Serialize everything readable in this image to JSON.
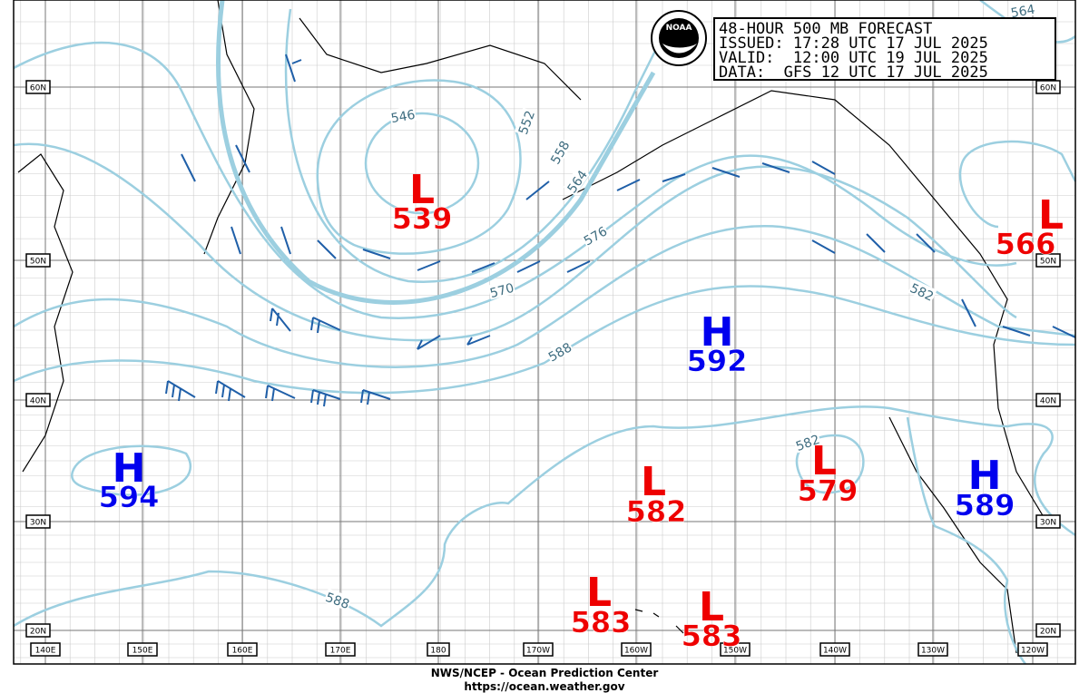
{
  "forecast_box": {
    "lines": [
      "48-HOUR 500 MB FORECAST",
      "ISSUED: 17:28 UTC 17 JUL 2025",
      "VALID:  12:00 UTC 19 JUL 2025",
      "DATA:  GFS 12 UTC 17 JUL 2025"
    ]
  },
  "logo_text": "NOAA",
  "centers": [
    {
      "letter": "L",
      "value": 539
    },
    {
      "letter": "H",
      "value": 592
    },
    {
      "letter": "H",
      "value": 594
    },
    {
      "letter": "L",
      "value": 582
    },
    {
      "letter": "L",
      "value": 579
    },
    {
      "letter": "H",
      "value": 589
    },
    {
      "letter": "L",
      "value": 566
    },
    {
      "letter": "L",
      "value": 583
    },
    {
      "letter": "L",
      "value": 583
    }
  ],
  "contour_labels": [
    546,
    552,
    558,
    564,
    570,
    576,
    582,
    588,
    564,
    582,
    588
  ],
  "lat_labels": [
    "60N",
    "50N",
    "40N",
    "30N",
    "20N"
  ],
  "lon_labels": [
    "140E",
    "150E",
    "160E",
    "170E",
    "180",
    "170W",
    "160W",
    "150W",
    "140W",
    "130W",
    "120W"
  ],
  "footer": {
    "line1": "NWS/NCEP - Ocean Prediction Center",
    "line2": "https://ocean.weather.gov"
  }
}
